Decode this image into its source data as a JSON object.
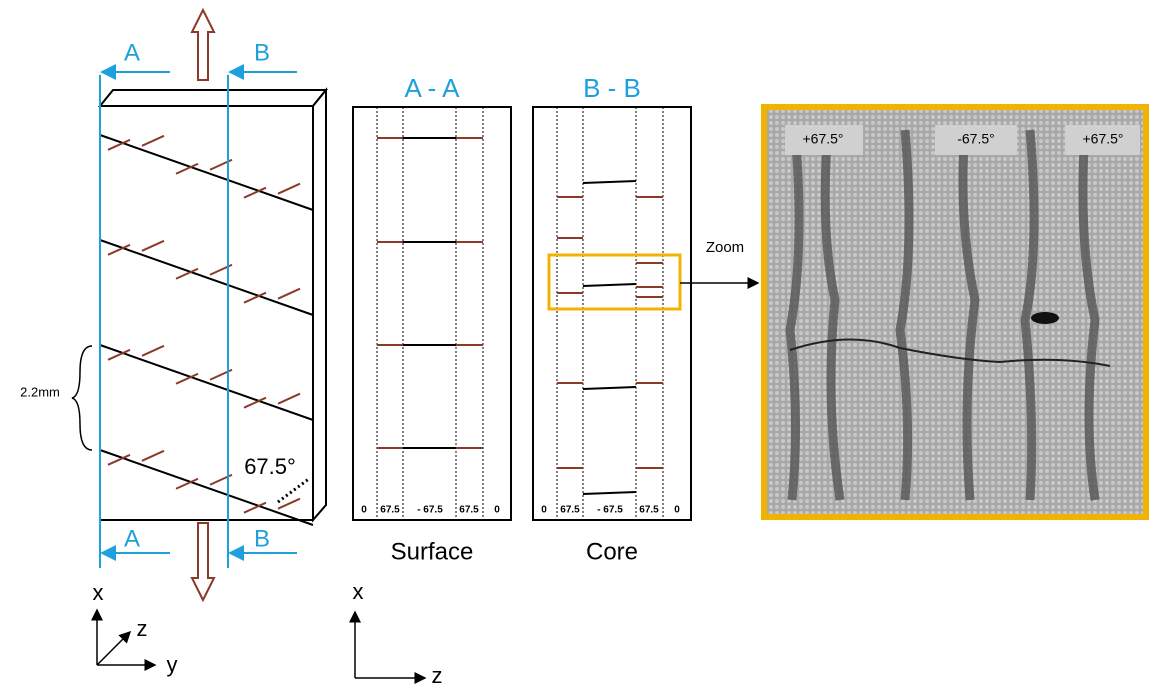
{
  "specimen": {
    "labels_top": [
      "A",
      "B"
    ],
    "labels_bottom": [
      "A",
      "B"
    ],
    "spacing": "2.2mm",
    "angle": "67.5°",
    "axes": {
      "x": "x",
      "y": "y",
      "z": "z"
    }
  },
  "sections": [
    {
      "title": "A - A",
      "plies": [
        "0",
        "67.5",
        "- 67.5",
        "67.5",
        "0"
      ],
      "caption": "Surface"
    },
    {
      "title": "B - B",
      "plies": [
        "0",
        "67.5",
        "- 67.5",
        "67.5",
        "0"
      ],
      "caption": "Core"
    }
  ],
  "section_axes": {
    "x": "x",
    "z": "z"
  },
  "zoom": {
    "label": "Zoom",
    "plies": [
      "+67.5°",
      "-67.5°",
      "+67.5°"
    ]
  }
}
